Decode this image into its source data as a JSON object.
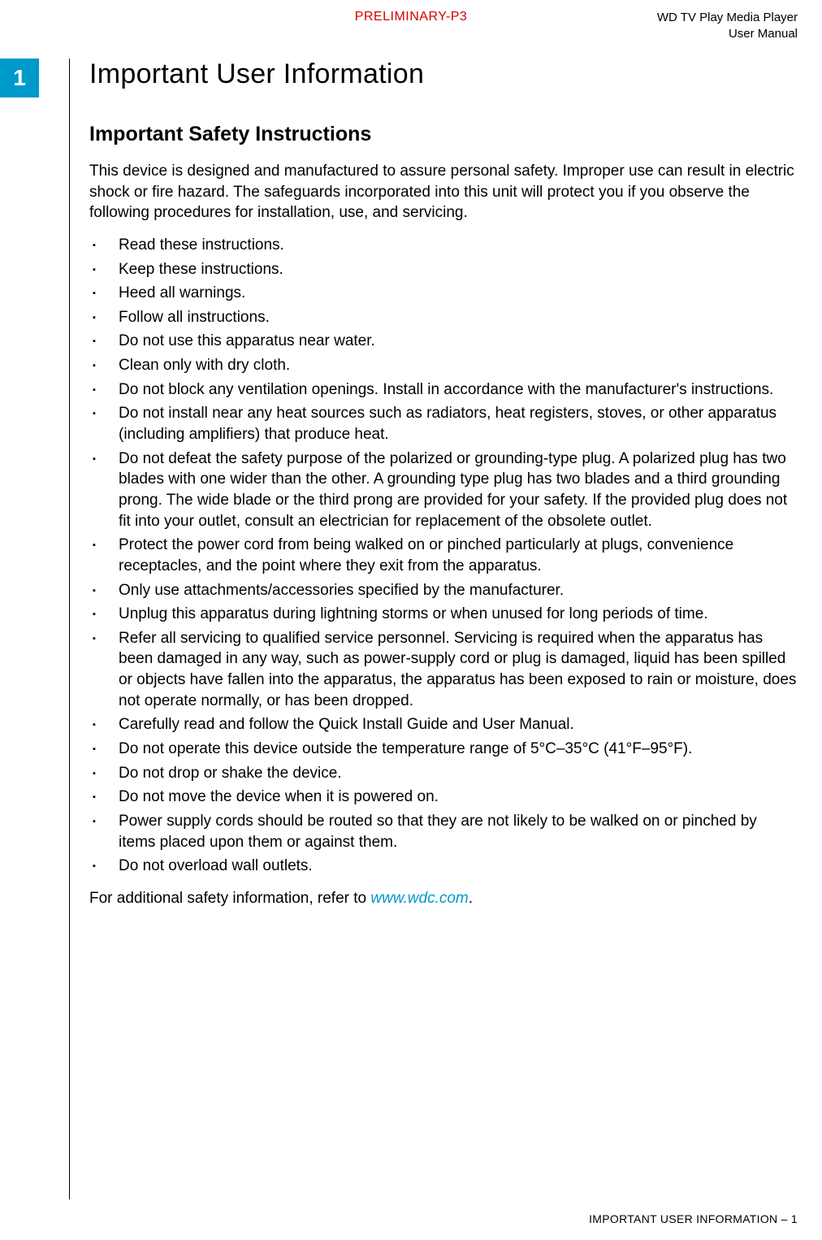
{
  "header": {
    "product_line1": "WD TV Play Media Player",
    "product_line2": "User Manual",
    "preliminary": "PRELIMINARY-P3"
  },
  "chapter_number": "1",
  "page_title": "Important User Information",
  "section_title": "Important Safety Instructions",
  "intro_paragraph": "This device is designed and manufactured to assure personal safety. Improper use can result in electric shock or fire hazard. The safeguards incorporated into this unit will protect you if you observe the following procedures for installation, use, and servicing.",
  "bullets": [
    "Read these instructions.",
    "Keep these instructions.",
    "Heed all warnings.",
    "Follow all instructions.",
    "Do not use this apparatus near water.",
    "Clean only with dry cloth.",
    "Do not block any ventilation openings. Install in accordance with the manufacturer's instructions.",
    "Do not install near any heat sources such as radiators, heat registers, stoves, or other apparatus (including amplifiers) that produce heat.",
    "Do not defeat the safety purpose of the polarized or grounding-type plug. A polarized plug has two blades with one wider than the other. A grounding type plug has two blades and a third grounding prong. The wide blade or the third prong are provided for your safety. If the provided plug does not fit into your outlet, consult an electrician for replacement of the obsolete outlet.",
    "Protect the power cord from being walked on or pinched particularly at plugs, convenience receptacles, and the point where they exit from the apparatus.",
    "Only use attachments/accessories specified by the manufacturer.",
    "Unplug this apparatus during lightning storms or when unused for long periods of time.",
    "Refer all servicing to qualified service personnel. Servicing is required when the apparatus has been damaged in any way, such as power-supply cord or plug is damaged, liquid has been spilled or objects have fallen into the apparatus, the apparatus has been exposed to rain or moisture, does not operate normally, or has been dropped.",
    "Carefully read and follow the Quick Install Guide and User Manual.",
    "Do not operate this device outside the temperature range of 5°C–35°C (41°F–95°F).",
    "Do not drop or shake the device.",
    "Do not move the device when it is powered on.",
    "Power supply cords should be routed so that they are not likely to be walked on or pinched by items placed upon them or against them.",
    "Do not overload wall outlets."
  ],
  "closing_prefix": "For additional safety information, refer to ",
  "closing_link": "www.wdc.com",
  "closing_suffix": ".",
  "footer": "IMPORTANT USER INFORMATION – 1",
  "colors": {
    "accent": "#0099cc",
    "preliminary": "#d00000",
    "text": "#000000",
    "background": "#ffffff"
  }
}
